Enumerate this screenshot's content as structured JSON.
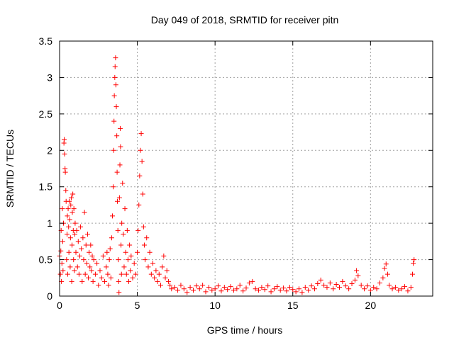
{
  "chart_data": {
    "type": "scatter",
    "title": "Day 049 of 2018, SRMTID for receiver pitn",
    "xlabel": "GPS time / hours",
    "ylabel": "SRMTID / TECUs",
    "xlim": [
      0,
      24
    ],
    "ylim": [
      0,
      3.5
    ],
    "xticks": [
      0,
      5,
      10,
      15,
      20
    ],
    "xtick_labels": [
      "0",
      "5",
      "10",
      "15",
      "20"
    ],
    "yticks": [
      0,
      0.5,
      1,
      1.5,
      2,
      2.5,
      3,
      3.5
    ],
    "ytick_labels": [
      "0",
      "0.5",
      "1",
      "1.5",
      "2",
      "2.5",
      "3",
      "3.5"
    ],
    "grid": true,
    "marker": "+",
    "color": "#ff0000",
    "series": [
      {
        "name": "SRMTID",
        "points": [
          [
            0.0,
            0.55
          ],
          [
            0.05,
            0.3
          ],
          [
            0.08,
            0.62
          ],
          [
            0.1,
            0.9
          ],
          [
            0.12,
            0.2
          ],
          [
            0.15,
            0.45
          ],
          [
            0.18,
            1.2
          ],
          [
            0.2,
            0.75
          ],
          [
            0.22,
            0.35
          ],
          [
            0.25,
            1.0
          ],
          [
            0.28,
            2.1
          ],
          [
            0.3,
            2.15
          ],
          [
            0.32,
            1.95
          ],
          [
            0.35,
            1.75
          ],
          [
            0.37,
            1.7
          ],
          [
            0.4,
            1.45
          ],
          [
            0.42,
            1.3
          ],
          [
            0.45,
            0.5
          ],
          [
            0.48,
            0.85
          ],
          [
            0.5,
            1.1
          ],
          [
            0.52,
            0.3
          ],
          [
            0.55,
            1.2
          ],
          [
            0.58,
            0.95
          ],
          [
            0.6,
            0.6
          ],
          [
            0.62,
            1.3
          ],
          [
            0.65,
            1.05
          ],
          [
            0.68,
            0.4
          ],
          [
            0.7,
            0.8
          ],
          [
            0.72,
            1.25
          ],
          [
            0.75,
            1.35
          ],
          [
            0.78,
            0.2
          ],
          [
            0.8,
            0.7
          ],
          [
            0.82,
            1.15
          ],
          [
            0.85,
            1.4
          ],
          [
            0.88,
            0.9
          ],
          [
            0.9,
            0.5
          ],
          [
            0.92,
            1.2
          ],
          [
            0.95,
            0.35
          ],
          [
            0.98,
            0.85
          ],
          [
            1.0,
            1.0
          ],
          [
            1.05,
            0.6
          ],
          [
            1.1,
            0.9
          ],
          [
            1.15,
            0.4
          ],
          [
            1.2,
            0.75
          ],
          [
            1.25,
            0.3
          ],
          [
            1.3,
            0.55
          ],
          [
            1.35,
            0.95
          ],
          [
            1.4,
            0.65
          ],
          [
            1.45,
            0.2
          ],
          [
            1.5,
            0.8
          ],
          [
            1.55,
            0.5
          ],
          [
            1.6,
            1.15
          ],
          [
            1.65,
            0.3
          ],
          [
            1.7,
            0.7
          ],
          [
            1.75,
            0.45
          ],
          [
            1.8,
            0.85
          ],
          [
            1.85,
            0.25
          ],
          [
            1.9,
            0.6
          ],
          [
            1.95,
            0.4
          ],
          [
            2.0,
            0.7
          ],
          [
            2.05,
            0.35
          ],
          [
            2.1,
            0.55
          ],
          [
            2.15,
            0.2
          ],
          [
            2.2,
            0.5
          ],
          [
            2.3,
            0.3
          ],
          [
            2.4,
            0.45
          ],
          [
            2.5,
            0.15
          ],
          [
            2.6,
            0.35
          ],
          [
            2.7,
            0.25
          ],
          [
            2.8,
            0.55
          ],
          [
            2.9,
            0.2
          ],
          [
            3.0,
            0.4
          ],
          [
            3.05,
            0.6
          ],
          [
            3.1,
            0.3
          ],
          [
            3.15,
            0.15
          ],
          [
            3.2,
            0.5
          ],
          [
            3.25,
            0.65
          ],
          [
            3.3,
            0.25
          ],
          [
            3.35,
            0.8
          ],
          [
            3.4,
            1.1
          ],
          [
            3.45,
            1.5
          ],
          [
            3.48,
            2.0
          ],
          [
            3.5,
            2.4
          ],
          [
            3.52,
            2.75
          ],
          [
            3.55,
            3.0
          ],
          [
            3.57,
            3.15
          ],
          [
            3.6,
            3.27
          ],
          [
            3.62,
            2.9
          ],
          [
            3.65,
            2.6
          ],
          [
            3.68,
            2.2
          ],
          [
            3.7,
            1.7
          ],
          [
            3.72,
            1.3
          ],
          [
            3.75,
            0.9
          ],
          [
            3.78,
            0.5
          ],
          [
            3.8,
            0.2
          ],
          [
            3.82,
            0.05
          ],
          [
            3.85,
            1.35
          ],
          [
            3.88,
            1.8
          ],
          [
            3.9,
            2.3
          ],
          [
            3.92,
            2.05
          ],
          [
            3.95,
            0.7
          ],
          [
            3.98,
            0.3
          ],
          [
            4.0,
            1.0
          ],
          [
            4.05,
            1.55
          ],
          [
            4.1,
            0.85
          ],
          [
            4.15,
            0.4
          ],
          [
            4.2,
            1.2
          ],
          [
            4.25,
            0.6
          ],
          [
            4.3,
            0.3
          ],
          [
            4.35,
            0.9
          ],
          [
            4.4,
            0.5
          ],
          [
            4.45,
            0.2
          ],
          [
            4.5,
            0.7
          ],
          [
            4.55,
            0.35
          ],
          [
            4.6,
            0.55
          ],
          [
            4.7,
            0.25
          ],
          [
            4.8,
            0.45
          ],
          [
            4.9,
            0.3
          ],
          [
            5.0,
            0.6
          ],
          [
            5.05,
            0.9
          ],
          [
            5.1,
            1.25
          ],
          [
            5.15,
            1.65
          ],
          [
            5.2,
            2.0
          ],
          [
            5.25,
            2.23
          ],
          [
            5.3,
            1.85
          ],
          [
            5.35,
            1.4
          ],
          [
            5.4,
            0.95
          ],
          [
            5.45,
            0.7
          ],
          [
            5.5,
            0.5
          ],
          [
            5.6,
            0.8
          ],
          [
            5.7,
            0.4
          ],
          [
            5.8,
            0.6
          ],
          [
            5.9,
            0.3
          ],
          [
            6.0,
            0.45
          ],
          [
            6.1,
            0.25
          ],
          [
            6.2,
            0.35
          ],
          [
            6.3,
            0.2
          ],
          [
            6.4,
            0.3
          ],
          [
            6.5,
            0.15
          ],
          [
            6.6,
            0.4
          ],
          [
            6.7,
            0.55
          ],
          [
            6.8,
            0.25
          ],
          [
            6.9,
            0.35
          ],
          [
            7.0,
            0.2
          ],
          [
            7.1,
            0.15
          ],
          [
            7.2,
            0.1
          ],
          [
            7.4,
            0.12
          ],
          [
            7.6,
            0.08
          ],
          [
            7.8,
            0.15
          ],
          [
            8.0,
            0.1
          ],
          [
            8.2,
            0.05
          ],
          [
            8.4,
            0.12
          ],
          [
            8.6,
            0.08
          ],
          [
            8.8,
            0.14
          ],
          [
            9.0,
            0.1
          ],
          [
            9.2,
            0.15
          ],
          [
            9.4,
            0.06
          ],
          [
            9.6,
            0.12
          ],
          [
            9.8,
            0.08
          ],
          [
            10.0,
            0.1
          ],
          [
            10.2,
            0.14
          ],
          [
            10.4,
            0.07
          ],
          [
            10.6,
            0.12
          ],
          [
            10.8,
            0.09
          ],
          [
            11.0,
            0.13
          ],
          [
            11.2,
            0.08
          ],
          [
            11.4,
            0.1
          ],
          [
            11.6,
            0.15
          ],
          [
            11.8,
            0.07
          ],
          [
            12.0,
            0.11
          ],
          [
            12.2,
            0.18
          ],
          [
            12.4,
            0.2
          ],
          [
            12.6,
            0.1
          ],
          [
            12.8,
            0.08
          ],
          [
            13.0,
            0.12
          ],
          [
            13.2,
            0.09
          ],
          [
            13.4,
            0.14
          ],
          [
            13.6,
            0.06
          ],
          [
            13.8,
            0.1
          ],
          [
            14.0,
            0.13
          ],
          [
            14.2,
            0.08
          ],
          [
            14.4,
            0.11
          ],
          [
            14.6,
            0.07
          ],
          [
            14.8,
            0.12
          ],
          [
            15.0,
            0.09
          ],
          [
            15.2,
            0.06
          ],
          [
            15.4,
            0.1
          ],
          [
            15.6,
            0.05
          ],
          [
            15.8,
            0.12
          ],
          [
            16.0,
            0.08
          ],
          [
            16.2,
            0.14
          ],
          [
            16.4,
            0.1
          ],
          [
            16.6,
            0.17
          ],
          [
            16.8,
            0.22
          ],
          [
            17.0,
            0.15
          ],
          [
            17.2,
            0.12
          ],
          [
            17.4,
            0.18
          ],
          [
            17.6,
            0.1
          ],
          [
            17.8,
            0.16
          ],
          [
            18.0,
            0.12
          ],
          [
            18.2,
            0.2
          ],
          [
            18.4,
            0.14
          ],
          [
            18.6,
            0.1
          ],
          [
            18.8,
            0.17
          ],
          [
            19.0,
            0.22
          ],
          [
            19.1,
            0.35
          ],
          [
            19.2,
            0.28
          ],
          [
            19.4,
            0.15
          ],
          [
            19.6,
            0.1
          ],
          [
            19.8,
            0.14
          ],
          [
            20.0,
            0.08
          ],
          [
            20.2,
            0.12
          ],
          [
            20.4,
            0.1
          ],
          [
            20.6,
            0.18
          ],
          [
            20.8,
            0.25
          ],
          [
            20.9,
            0.38
          ],
          [
            21.0,
            0.44
          ],
          [
            21.1,
            0.3
          ],
          [
            21.2,
            0.15
          ],
          [
            21.4,
            0.1
          ],
          [
            21.6,
            0.12
          ],
          [
            21.8,
            0.08
          ],
          [
            22.0,
            0.1
          ],
          [
            22.2,
            0.13
          ],
          [
            22.4,
            0.07
          ],
          [
            22.6,
            0.12
          ],
          [
            22.7,
            0.3
          ],
          [
            22.75,
            0.45
          ],
          [
            22.8,
            0.5
          ]
        ]
      }
    ]
  }
}
